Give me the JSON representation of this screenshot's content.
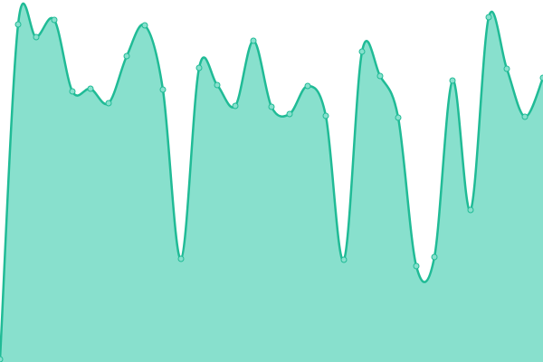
{
  "chart_data": {
    "type": "area",
    "values": [
      3,
      373,
      359,
      378,
      299,
      302,
      286,
      338,
      372,
      301,
      114,
      325,
      306,
      283,
      355,
      282,
      274,
      305,
      272,
      113,
      343,
      316,
      270,
      106,
      116,
      311,
      168,
      381,
      324,
      271,
      314
    ],
    "color": "#20bb96",
    "fill": "#88e0cd",
    "ylim": [
      0,
      400
    ]
  }
}
